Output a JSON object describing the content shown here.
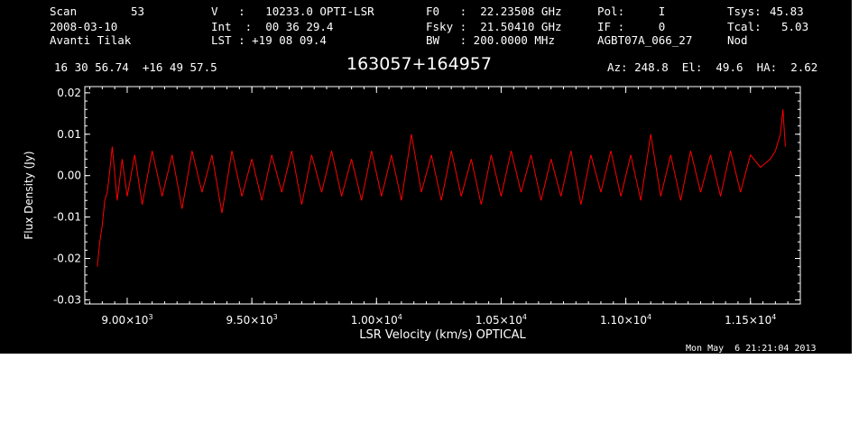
{
  "header": {
    "scan_label": "Scan",
    "scan_value": "53",
    "date": "2008-03-10",
    "observer": "Avanti Tilak",
    "v_line": "V   :   10233.0 OPTI-LSR",
    "int_line": "Int  :  00 36 29.4",
    "lst_line": "LST : +19 08 09.4",
    "f0_line": "F0   :  22.23508 GHz",
    "fsky_line": "Fsky :  21.50410 GHz",
    "bw_line": "BW   : 200.0000 MHz",
    "pol_line": "Pol:     I",
    "if_line": "IF :     0",
    "project": "AGBT07A_066_27",
    "tsys_label": "Tsys:",
    "tsys_value": "45.83",
    "tcal_label": "Tcal:",
    "tcal_value": "5.03",
    "procedure": "Nod",
    "coords": "16 30 56.74  +16 49 57.5",
    "source": "163057+164957",
    "pointing": "Az: 248.8  El:  49.6  HA:  2.62"
  },
  "footer": {
    "timestamp": "Mon May  6 21:21:04 2013"
  },
  "colors": {
    "background": "#000000",
    "foreground": "#ffffff",
    "spectrum": "#ff0000"
  },
  "chart_data": {
    "type": "line",
    "xlabel": "LSR Velocity (km/s) OPTICAL",
    "ylabel": "Flux Density (Jy)",
    "xlim": [
      8830,
      11700
    ],
    "ylim": [
      -0.031,
      0.0215
    ],
    "x_ticks": [
      {
        "value": 9000,
        "mant": "9.00",
        "exp": "3"
      },
      {
        "value": 9500,
        "mant": "9.50",
        "exp": "3"
      },
      {
        "value": 10000,
        "mant": "1.00",
        "exp": "4"
      },
      {
        "value": 10500,
        "mant": "1.05",
        "exp": "4"
      },
      {
        "value": 11000,
        "mant": "1.10",
        "exp": "4"
      },
      {
        "value": 11500,
        "mant": "1.15",
        "exp": "4"
      }
    ],
    "y_ticks": [
      {
        "value": 0.02,
        "label": "0.02"
      },
      {
        "value": 0.01,
        "label": "0.01"
      },
      {
        "value": 0.0,
        "label": "0.00"
      },
      {
        "value": -0.01,
        "label": "-0.01"
      },
      {
        "value": -0.02,
        "label": "-0.02"
      },
      {
        "value": -0.03,
        "label": "-0.03"
      }
    ],
    "grid": false,
    "series": [
      {
        "x": [
          8880,
          8890,
          8900,
          8910,
          8920,
          8930,
          8940,
          8960,
          8980,
          9000,
          9030,
          9060,
          9100,
          9140,
          9180,
          9220,
          9260,
          9300,
          9340,
          9380,
          9420,
          9460,
          9500,
          9540,
          9580,
          9620,
          9660,
          9700,
          9740,
          9780,
          9820,
          9860,
          9900,
          9940,
          9980,
          10020,
          10060,
          10100,
          10140,
          10180,
          10220,
          10260,
          10300,
          10340,
          10380,
          10420,
          10460,
          10500,
          10540,
          10580,
          10620,
          10660,
          10700,
          10740,
          10780,
          10820,
          10860,
          10900,
          10940,
          10980,
          11020,
          11060,
          11100,
          11140,
          11180,
          11220,
          11260,
          11300,
          11340,
          11380,
          11420,
          11460,
          11500,
          11540,
          11580,
          11600,
          11620,
          11630,
          11640
        ],
        "y": [
          -0.022,
          -0.016,
          -0.012,
          -0.006,
          -0.004,
          0.001,
          0.007,
          -0.006,
          0.004,
          -0.005,
          0.005,
          -0.007,
          0.006,
          -0.005,
          0.005,
          -0.008,
          0.006,
          -0.004,
          0.005,
          -0.009,
          0.006,
          -0.005,
          0.004,
          -0.006,
          0.005,
          -0.004,
          0.006,
          -0.007,
          0.005,
          -0.004,
          0.006,
          -0.005,
          0.004,
          -0.006,
          0.006,
          -0.005,
          0.005,
          -0.006,
          0.01,
          -0.004,
          0.005,
          -0.006,
          0.006,
          -0.005,
          0.004,
          -0.007,
          0.005,
          -0.005,
          0.006,
          -0.004,
          0.005,
          -0.006,
          0.004,
          -0.005,
          0.006,
          -0.007,
          0.005,
          -0.004,
          0.006,
          -0.005,
          0.005,
          -0.006,
          0.01,
          -0.005,
          0.005,
          -0.006,
          0.006,
          -0.004,
          0.005,
          -0.005,
          0.006,
          -0.004,
          0.005,
          0.002,
          0.004,
          0.006,
          0.01,
          0.016,
          0.007
        ]
      }
    ]
  }
}
